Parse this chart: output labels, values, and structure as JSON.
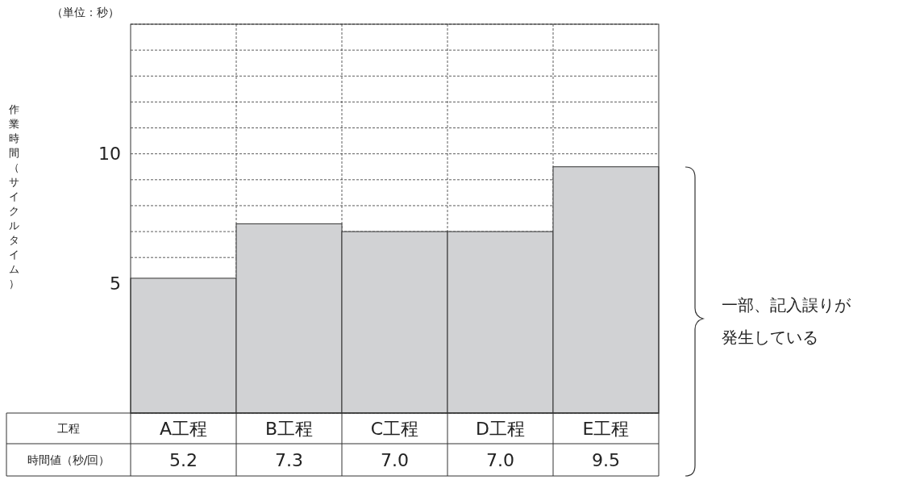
{
  "chart_data": {
    "type": "bar",
    "ylabel": "作業時間（サイクルタイム）",
    "categories": [
      "A工程",
      "B工程",
      "C工程",
      "D工程",
      "E工程"
    ],
    "values": [
      5.2,
      7.3,
      7.0,
      7.0,
      9.5
    ],
    "value_labels": [
      "5.2",
      "7.3",
      "7.0",
      "7.0",
      "9.5"
    ],
    "color": "#d1d2d4",
    "ylim": [
      0,
      15
    ],
    "yticks": [
      {
        "value": 0,
        "label": null
      },
      5,
      {
        "value": 6,
        "label": null
      },
      {
        "value": 7,
        "label": null
      },
      {
        "value": 8,
        "label": null
      },
      {
        "value": 9,
        "label": null
      },
      10,
      {
        "value": 11,
        "label": null
      },
      {
        "value": 12,
        "label": null
      },
      {
        "value": 13,
        "label": null
      },
      {
        "value": 14,
        "label": null
      },
      {
        "value": 15,
        "label": null
      }
    ],
    "grid": true,
    "annotations": [
      "（単位：秒）",
      "工程",
      "時間値（秒/回）",
      "一部、記入誤りが",
      "発生している"
    ]
  }
}
